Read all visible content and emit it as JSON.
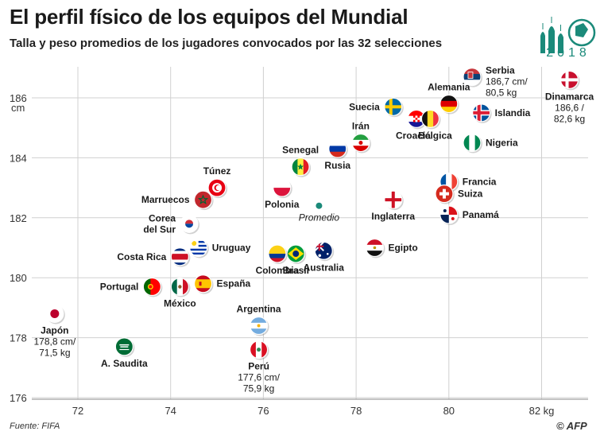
{
  "header": {
    "title": "El perfil físico de los equipos del Mundial",
    "subtitle": "Talla y peso promedios de los jugadores convocados por las 32 selecciones"
  },
  "logo": {
    "year": "2018"
  },
  "footer": {
    "source": "Fuente: FIFA",
    "credit": "© AFP"
  },
  "colors": {
    "accent": "#1b8a7a",
    "grid": "#d0d0d0",
    "axis": "#888888"
  },
  "chart_data": {
    "type": "scatter",
    "title": "El perfil físico de los equipos del Mundial",
    "subtitle": "Talla y peso promedios de los jugadores convocados por las 32 selecciones",
    "xlabel": "kg",
    "ylabel": "cm",
    "xlim": [
      71,
      83
    ],
    "ylim": [
      176,
      187.5
    ],
    "x_ticks": [
      72,
      74,
      76,
      78,
      80,
      82
    ],
    "x_tick_labels": [
      "72",
      "74",
      "76",
      "78",
      "80",
      "82 kg"
    ],
    "y_ticks": [
      176,
      178,
      180,
      182,
      184,
      186
    ],
    "y_tick_labels": [
      "176",
      "178",
      "180",
      "182",
      "184",
      "186"
    ],
    "y_unit_label": "cm",
    "grid": true,
    "points": [
      {
        "name": "Serbia",
        "x": 80.5,
        "y": 186.7,
        "flag": "serbia",
        "label": "Serbia",
        "detail": [
          "186,7 cm/",
          "80,5 kg"
        ],
        "anchor": "right-top"
      },
      {
        "name": "Dinamarca",
        "x": 82.6,
        "y": 186.6,
        "flag": "denmark",
        "label": "Dinamarca",
        "detail": [
          "186,6 /",
          "82,6 kg"
        ],
        "anchor": "below"
      },
      {
        "name": "Alemania",
        "x": 80.0,
        "y": 185.8,
        "flag": "germany",
        "label": "Alemania",
        "anchor": "above"
      },
      {
        "name": "Suecia",
        "x": 78.8,
        "y": 185.7,
        "flag": "sweden",
        "label": "Suecia",
        "anchor": "left"
      },
      {
        "name": "Islandia",
        "x": 80.7,
        "y": 185.5,
        "flag": "iceland",
        "label": "Islandia",
        "anchor": "right"
      },
      {
        "name": "Croacia",
        "x": 79.3,
        "y": 185.3,
        "flag": "croatia",
        "label": "Croacia",
        "anchor": "below"
      },
      {
        "name": "Bélgica",
        "x": 79.6,
        "y": 185.3,
        "flag": "belgium",
        "label": "Bélgica",
        "anchor": "below"
      },
      {
        "name": "Irán",
        "x": 78.1,
        "y": 184.5,
        "flag": "iran",
        "label": "Irán",
        "anchor": "above"
      },
      {
        "name": "Nigeria",
        "x": 80.5,
        "y": 184.5,
        "flag": "nigeria",
        "label": "Nigeria",
        "anchor": "right"
      },
      {
        "name": "Rusia",
        "x": 77.6,
        "y": 184.3,
        "flag": "russia",
        "label": "Rusia",
        "anchor": "below"
      },
      {
        "name": "Senegal",
        "x": 76.8,
        "y": 183.7,
        "flag": "senegal",
        "label": "Senegal",
        "anchor": "above"
      },
      {
        "name": "Francia",
        "x": 80.0,
        "y": 183.2,
        "flag": "france",
        "label": "Francia",
        "anchor": "right"
      },
      {
        "name": "Túnez",
        "x": 75.0,
        "y": 183.0,
        "flag": "tunisia",
        "label": "Túnez",
        "anchor": "above"
      },
      {
        "name": "Polonia",
        "x": 76.4,
        "y": 183.0,
        "flag": "poland",
        "label": "Polonia",
        "anchor": "below"
      },
      {
        "name": "Suiza",
        "x": 79.9,
        "y": 182.8,
        "flag": "switzerland",
        "label": "Suiza",
        "anchor": "right"
      },
      {
        "name": "Inglaterra",
        "x": 78.8,
        "y": 182.6,
        "flag": "england",
        "label": "Inglaterra",
        "anchor": "below"
      },
      {
        "name": "Marruecos",
        "x": 74.7,
        "y": 182.6,
        "flag": "morocco",
        "label": "Marruecos",
        "anchor": "left"
      },
      {
        "name": "Panamá",
        "x": 80.0,
        "y": 182.1,
        "flag": "panama",
        "label": "Panamá",
        "anchor": "right"
      },
      {
        "name": "Corea del Sur",
        "x": 74.4,
        "y": 181.8,
        "flag": "korea",
        "label": "Corea",
        "detail": [
          "del Sur"
        ],
        "anchor": "left"
      },
      {
        "name": "Uruguay",
        "x": 74.6,
        "y": 181.0,
        "flag": "uruguay",
        "label": "Uruguay",
        "anchor": "right"
      },
      {
        "name": "Egipto",
        "x": 78.4,
        "y": 181.0,
        "flag": "egypt",
        "label": "Egipto",
        "anchor": "right"
      },
      {
        "name": "Australia",
        "x": 77.3,
        "y": 180.9,
        "flag": "australia",
        "label": "Australia",
        "anchor": "below"
      },
      {
        "name": "Brasil",
        "x": 76.7,
        "y": 180.8,
        "flag": "brazil",
        "label": "Brasil",
        "anchor": "below"
      },
      {
        "name": "Colombia",
        "x": 76.3,
        "y": 180.8,
        "flag": "colombia",
        "label": "Colombia",
        "anchor": "below"
      },
      {
        "name": "Costa Rica",
        "x": 74.2,
        "y": 180.7,
        "flag": "costarica",
        "label": "Costa Rica",
        "anchor": "left"
      },
      {
        "name": "España",
        "x": 74.7,
        "y": 179.8,
        "flag": "spain",
        "label": "España",
        "anchor": "right"
      },
      {
        "name": "México",
        "x": 74.2,
        "y": 179.7,
        "flag": "mexico",
        "label": "México",
        "anchor": "below"
      },
      {
        "name": "Portugal",
        "x": 73.6,
        "y": 179.7,
        "flag": "portugal",
        "label": "Portugal",
        "anchor": "left"
      },
      {
        "name": "Japón",
        "x": 71.5,
        "y": 178.8,
        "flag": "japan",
        "label": "Japón",
        "detail": [
          "178,8 cm/",
          "71,5 kg"
        ],
        "anchor": "below"
      },
      {
        "name": "Argentina",
        "x": 75.9,
        "y": 178.4,
        "flag": "argentina",
        "label": "Argentina",
        "anchor": "above"
      },
      {
        "name": "A. Saudita",
        "x": 73.0,
        "y": 177.7,
        "flag": "saudi",
        "label": "A. Saudita",
        "anchor": "below"
      },
      {
        "name": "Perú",
        "x": 75.9,
        "y": 177.6,
        "flag": "peru",
        "label": "Perú",
        "detail": [
          "177,6 cm/",
          "75,9 kg"
        ],
        "anchor": "below"
      }
    ],
    "average": {
      "name": "Promedio",
      "label": "Promedio",
      "x": 77.2,
      "y": 182.4
    }
  }
}
